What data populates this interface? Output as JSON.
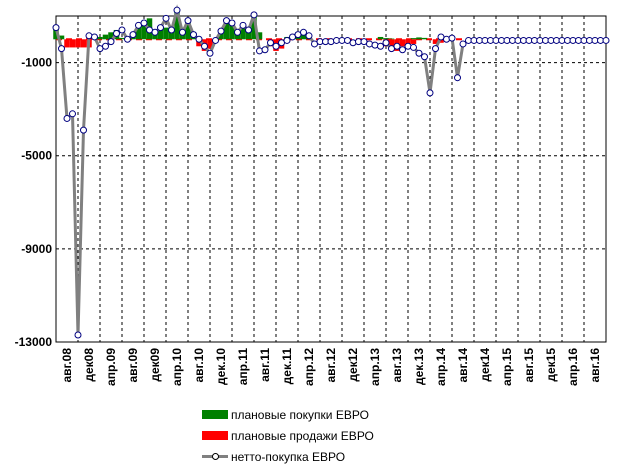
{
  "chart_data": {
    "type": "area",
    "title": "",
    "xlabel": "",
    "ylabel": "",
    "ylim": [
      -13000,
      1000
    ],
    "yticks": [
      -1000,
      -5000,
      -9000,
      -13000
    ],
    "ytick_labels": [
      "-1000",
      "-5000",
      "-9000",
      "-13000"
    ],
    "x_start": "2008-08",
    "x_end": "2016-12",
    "xtick_labels": [
      "авг.08",
      "дек08",
      "апр.09",
      "авг.09",
      "дек09",
      "апр.10",
      "авг.10",
      "дек.10",
      "апр.11",
      "авг.11",
      "дек.11",
      "апр.12",
      "авг.12",
      "дек12",
      "апр.13",
      "авг.13",
      "дек.13",
      "апр.14",
      "авг.14",
      "дек14",
      "апр.15",
      "авг.15",
      "дек15",
      "апр.16",
      "авг.16"
    ],
    "grid": true,
    "legend_position": "bottom",
    "legend": [
      {
        "name": "плановые покупки ЕВРО",
        "color": "#008000"
      },
      {
        "name": "плановые продажи ЕВРО",
        "color": "#ff0000"
      },
      {
        "name": "нетто-покупка ЕВРО",
        "color": "#808080"
      }
    ],
    "series": [
      {
        "name": "плановые покупки ЕВРО",
        "x": [
          "2008-08",
          "2008-09",
          "2009-03",
          "2009-04",
          "2009-05",
          "2009-06",
          "2009-07",
          "2009-08",
          "2009-09",
          "2009-10",
          "2009-11",
          "2009-12",
          "2010-01",
          "2010-02",
          "2010-03",
          "2010-04",
          "2010-05",
          "2010-06",
          "2010-07",
          "2010-08",
          "2010-09",
          "2011-02",
          "2011-03",
          "2011-04",
          "2011-05",
          "2011-06",
          "2011-07",
          "2011-08",
          "2011-09",
          "2012-02",
          "2012-03",
          "2012-04",
          "2012-05",
          "2012-06",
          "2013-07",
          "2013-08",
          "2013-09",
          "2014-01",
          "2014-02",
          "2014-03"
        ],
        "values": [
          520,
          160,
          60,
          100,
          200,
          300,
          400,
          60,
          120,
          200,
          500,
          600,
          900,
          300,
          450,
          500,
          400,
          1200,
          500,
          800,
          300,
          400,
          800,
          700,
          350,
          600,
          450,
          1000,
          300,
          100,
          200,
          300,
          400,
          200,
          100,
          50,
          30,
          50,
          80,
          60
        ]
      },
      {
        "name": "плановые продажи ЕВРО",
        "x": [
          "2008-10",
          "2008-11",
          "2008-12",
          "2009-01",
          "2009-02",
          "2010-10",
          "2010-11",
          "2010-12",
          "2011-11",
          "2011-12",
          "2012-01",
          "2013-08",
          "2013-09",
          "2013-10",
          "2013-11",
          "2013-12",
          "2014-01",
          "2014-05",
          "2014-06",
          "2014-07"
        ],
        "values": [
          -350,
          -350,
          -350,
          -350,
          -350,
          -300,
          -500,
          -400,
          -300,
          -500,
          -400,
          -300,
          -400,
          -500,
          -300,
          -300,
          -200,
          -200,
          -150,
          -100
        ]
      },
      {
        "name": "нетто-покупка ЕВРО",
        "x": [
          "2008-08",
          "2008-09",
          "2008-10",
          "2008-11",
          "2008-12",
          "2009-01",
          "2009-02",
          "2009-03",
          "2009-04",
          "2009-05",
          "2009-06",
          "2009-07",
          "2009-08",
          "2009-09",
          "2009-10",
          "2009-11",
          "2009-12",
          "2010-01",
          "2010-02",
          "2010-03",
          "2010-04",
          "2010-05",
          "2010-06",
          "2010-07",
          "2010-08",
          "2010-09",
          "2010-10",
          "2010-11",
          "2010-12",
          "2011-01",
          "2011-02",
          "2011-03",
          "2011-04",
          "2011-05",
          "2011-06",
          "2011-07",
          "2011-08",
          "2011-09",
          "2011-10",
          "2011-11",
          "2011-12",
          "2012-01",
          "2012-02",
          "2012-03",
          "2012-04",
          "2012-05",
          "2012-06",
          "2012-07",
          "2012-08",
          "2012-09",
          "2012-10",
          "2012-11",
          "2012-12",
          "2013-01",
          "2013-02",
          "2013-03",
          "2013-04",
          "2013-05",
          "2013-06",
          "2013-07",
          "2013-08",
          "2013-09",
          "2013-10",
          "2013-11",
          "2013-12",
          "2014-01",
          "2014-02",
          "2014-03",
          "2014-04",
          "2014-05",
          "2014-06",
          "2014-07",
          "2014-08",
          "2014-09",
          "2014-10",
          "2014-11",
          "2014-12",
          "2015-01",
          "2015-02",
          "2015-03",
          "2015-04",
          "2015-05",
          "2015-06",
          "2015-07",
          "2015-08",
          "2015-09",
          "2015-10",
          "2015-11",
          "2015-12",
          "2016-01",
          "2016-02",
          "2016-03",
          "2016-04",
          "2016-05",
          "2016-06",
          "2016-07",
          "2016-08",
          "2016-09",
          "2016-10",
          "2016-11",
          "2016-12"
        ],
        "values": [
          500,
          -400,
          -3400,
          -3200,
          -12700,
          -3900,
          150,
          100,
          -400,
          -300,
          -100,
          250,
          400,
          0,
          200,
          600,
          700,
          400,
          300,
          500,
          900,
          400,
          1250,
          300,
          800,
          200,
          0,
          -300,
          -600,
          -50,
          350,
          800,
          700,
          300,
          600,
          400,
          1050,
          -500,
          -450,
          -150,
          -300,
          -150,
          -50,
          100,
          200,
          300,
          150,
          -200,
          -100,
          -100,
          -100,
          -50,
          -50,
          -50,
          -150,
          -100,
          -100,
          -200,
          -250,
          -300,
          -150,
          -400,
          -300,
          -450,
          -300,
          -350,
          -600,
          -750,
          -2300,
          -400,
          100,
          0,
          50,
          -1650,
          -200,
          -50,
          -50,
          -50,
          -50,
          -50,
          -50,
          -50,
          -50,
          -50,
          -50,
          -50,
          -50,
          -50,
          -50,
          -50,
          -50,
          -50,
          -50,
          -50,
          -50,
          -50,
          -50,
          -50,
          -50,
          -50,
          -50
        ]
      }
    ]
  }
}
